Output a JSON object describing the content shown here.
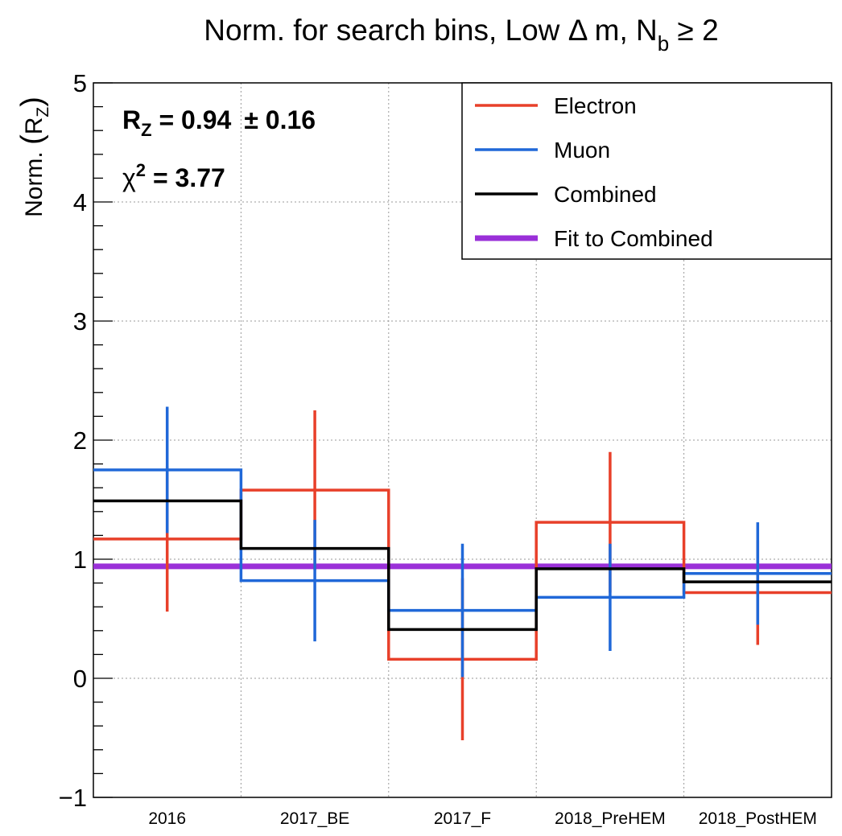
{
  "chart_data": {
    "type": "step",
    "title_parts": {
      "main": "Norm. for search bins, Low ",
      "delta": "Δ",
      "m": " m, N",
      "sub": "b",
      "ge": " ≥ 2"
    },
    "ylabel": {
      "main": "Norm. ",
      "paren_open": "(",
      "r": "R",
      "sub": "Z",
      "paren_close": ")"
    },
    "categories": [
      "2016",
      "2017_BE",
      "2017_F",
      "2018_PreHEM",
      "2018_PostHEM"
    ],
    "ylim": [
      -1,
      5
    ],
    "y_ticks": [
      -1,
      0,
      1,
      2,
      3,
      4,
      5
    ],
    "grid": true,
    "legend_position": "top-right",
    "series": [
      {
        "name": "Electron",
        "color": "#e8402a",
        "values": [
          1.17,
          1.58,
          0.16,
          1.31,
          0.72
        ],
        "errors": [
          0.61,
          0.67,
          0.68,
          0.59,
          0.44
        ]
      },
      {
        "name": "Muon",
        "color": "#2068d8",
        "values": [
          1.75,
          0.82,
          0.57,
          0.68,
          0.88
        ],
        "errors": [
          0.53,
          0.51,
          0.56,
          0.45,
          0.43
        ]
      },
      {
        "name": "Combined",
        "color": "#000000",
        "values": [
          1.49,
          1.09,
          0.41,
          0.92,
          0.81
        ],
        "errors": [
          0,
          0,
          0,
          0,
          0
        ]
      }
    ],
    "fit": {
      "name": "Fit to Combined",
      "color": "#9a30d8",
      "value": 0.94
    },
    "annotations": {
      "rz_r": "R",
      "rz_sub": "Z",
      "rz_value": " = 0.94",
      "rz_pm": "± 0.16",
      "chi_label": "χ",
      "chi_sup": "2",
      "chi_value": " = 3.77"
    }
  }
}
